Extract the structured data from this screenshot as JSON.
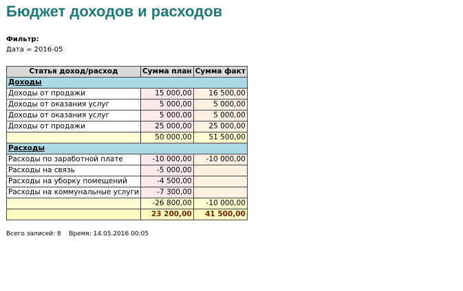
{
  "header": {
    "title": "Бюджет доходов и расходов"
  },
  "filter": {
    "label": "Фильтр:",
    "text": "Дата = 2016-05"
  },
  "table": {
    "columns": [
      "Статья доход/расход",
      "Сумма план",
      "Сумма факт"
    ],
    "sections": [
      {
        "name": "Доходы",
        "rows": [
          {
            "name": "Доходы от продажи",
            "plan": "15 000,00",
            "fact": "16 500,00"
          },
          {
            "name": "Доходы от оказания услуг",
            "plan": "5 000,00",
            "fact": "5 000,00"
          },
          {
            "name": "Доходы от оказания услуг",
            "plan": "5 000,00",
            "fact": "5 000,00"
          },
          {
            "name": "Доходы от продажи",
            "plan": "25 000,00",
            "fact": "25 000,00"
          }
        ],
        "subtotal": {
          "plan": "50 000,00",
          "fact": "51 500,00"
        }
      },
      {
        "name": "Расходы",
        "rows": [
          {
            "name": "Расходы по заработной плате",
            "plan": "-10 000,00",
            "fact": "-10 000,00"
          },
          {
            "name": "Расходы на связь",
            "plan": "-5 000,00"
          },
          {
            "name": "Расходы на уборку помещений",
            "plan": "-4 500,00"
          },
          {
            "name": "Расходы на коммунальные услуги",
            "plan": "-7 300,00"
          }
        ],
        "subtotal": {
          "plan": "-26 800,00",
          "fact": "-10 000,00"
        }
      }
    ],
    "total": {
      "plan": "23 200,00",
      "fact": "41 500,00"
    }
  },
  "footer": {
    "records": "Всего записей: 8",
    "time": "Время: 14.05.2016 00:05"
  }
}
